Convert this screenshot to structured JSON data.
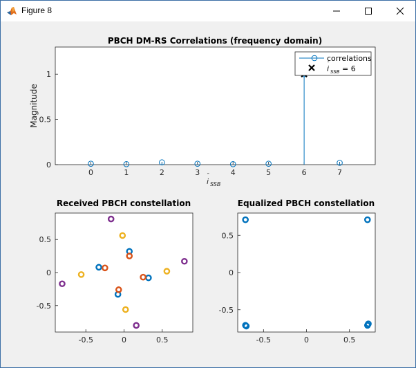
{
  "window": {
    "title": "Figure 8",
    "icon": "matlab-logo-icon",
    "controls": [
      "minimize-icon",
      "maximize-icon",
      "close-icon"
    ]
  },
  "colors": {
    "series1": "#0072bd",
    "series2": "#d95319",
    "series3": "#edb120",
    "series4": "#7e2f8e",
    "axes_bg": "#ffffff",
    "figure_bg": "#f0f0f0"
  },
  "chart_data": [
    {
      "type": "stem",
      "title": "PBCH DM-RS Correlations (frequency domain)",
      "xlabel": "ī_SSB",
      "ylabel": "Magnitude",
      "xlim": [
        -1,
        8
      ],
      "ylim": [
        0,
        1.3
      ],
      "xticks": [
        "0",
        "1",
        "2",
        "3",
        "4",
        "5",
        "6",
        "7"
      ],
      "yticks": [
        "0",
        "0.5",
        "1"
      ],
      "series": [
        {
          "name": "correlations",
          "x": [
            0,
            1,
            2,
            3,
            4,
            5,
            6,
            7
          ],
          "y": [
            0.01,
            0.005,
            0.025,
            0.01,
            0.005,
            0.01,
            1.0,
            0.02
          ]
        }
      ],
      "marker_point": {
        "label": "ī_SSB = 6",
        "x": 6,
        "y": 1.0,
        "marker": "x"
      },
      "legend": {
        "placement": "top-right",
        "entries": [
          "correlations",
          "ī_SSB = 6"
        ]
      }
    },
    {
      "type": "scatter",
      "title": "Received PBCH constellation",
      "xlim": [
        -0.9,
        0.9
      ],
      "ylim": [
        -0.9,
        0.9
      ],
      "xticks": [
        "-0.5",
        "0",
        "0.5"
      ],
      "yticks": [
        "-0.5",
        "0",
        "0.5"
      ],
      "series": [
        {
          "name": "",
          "points": [
            [
              -0.33,
              0.08
            ],
            [
              0.07,
              0.32
            ],
            [
              0.32,
              -0.08
            ],
            [
              -0.08,
              -0.33
            ]
          ]
        },
        {
          "name": "",
          "points": [
            [
              -0.25,
              0.07
            ],
            [
              0.07,
              0.25
            ],
            [
              0.25,
              -0.07
            ],
            [
              -0.07,
              -0.26
            ]
          ]
        },
        {
          "name": "",
          "points": [
            [
              -0.56,
              -0.03
            ],
            [
              -0.02,
              0.56
            ],
            [
              0.56,
              0.02
            ],
            [
              0.02,
              -0.56
            ]
          ]
        },
        {
          "name": "",
          "points": [
            [
              -0.81,
              -0.17
            ],
            [
              -0.17,
              0.81
            ],
            [
              0.79,
              0.17
            ],
            [
              0.16,
              -0.8
            ]
          ]
        }
      ]
    },
    {
      "type": "scatter",
      "title": "Equalized PBCH constellation",
      "xlim": [
        -0.8,
        0.8
      ],
      "ylim": [
        -0.8,
        0.8
      ],
      "xticks": [
        "-0.5",
        "0",
        "0.5"
      ],
      "yticks": [
        "-0.5",
        "0",
        "0.5"
      ],
      "series": [
        {
          "name": "",
          "points": [
            [
              -0.71,
              0.71
            ],
            [
              0.71,
              0.71
            ],
            [
              -0.71,
              -0.71
            ],
            [
              0.71,
              -0.71
            ],
            [
              0.72,
              -0.69
            ],
            [
              -0.7,
              -0.72
            ]
          ]
        }
      ]
    }
  ]
}
